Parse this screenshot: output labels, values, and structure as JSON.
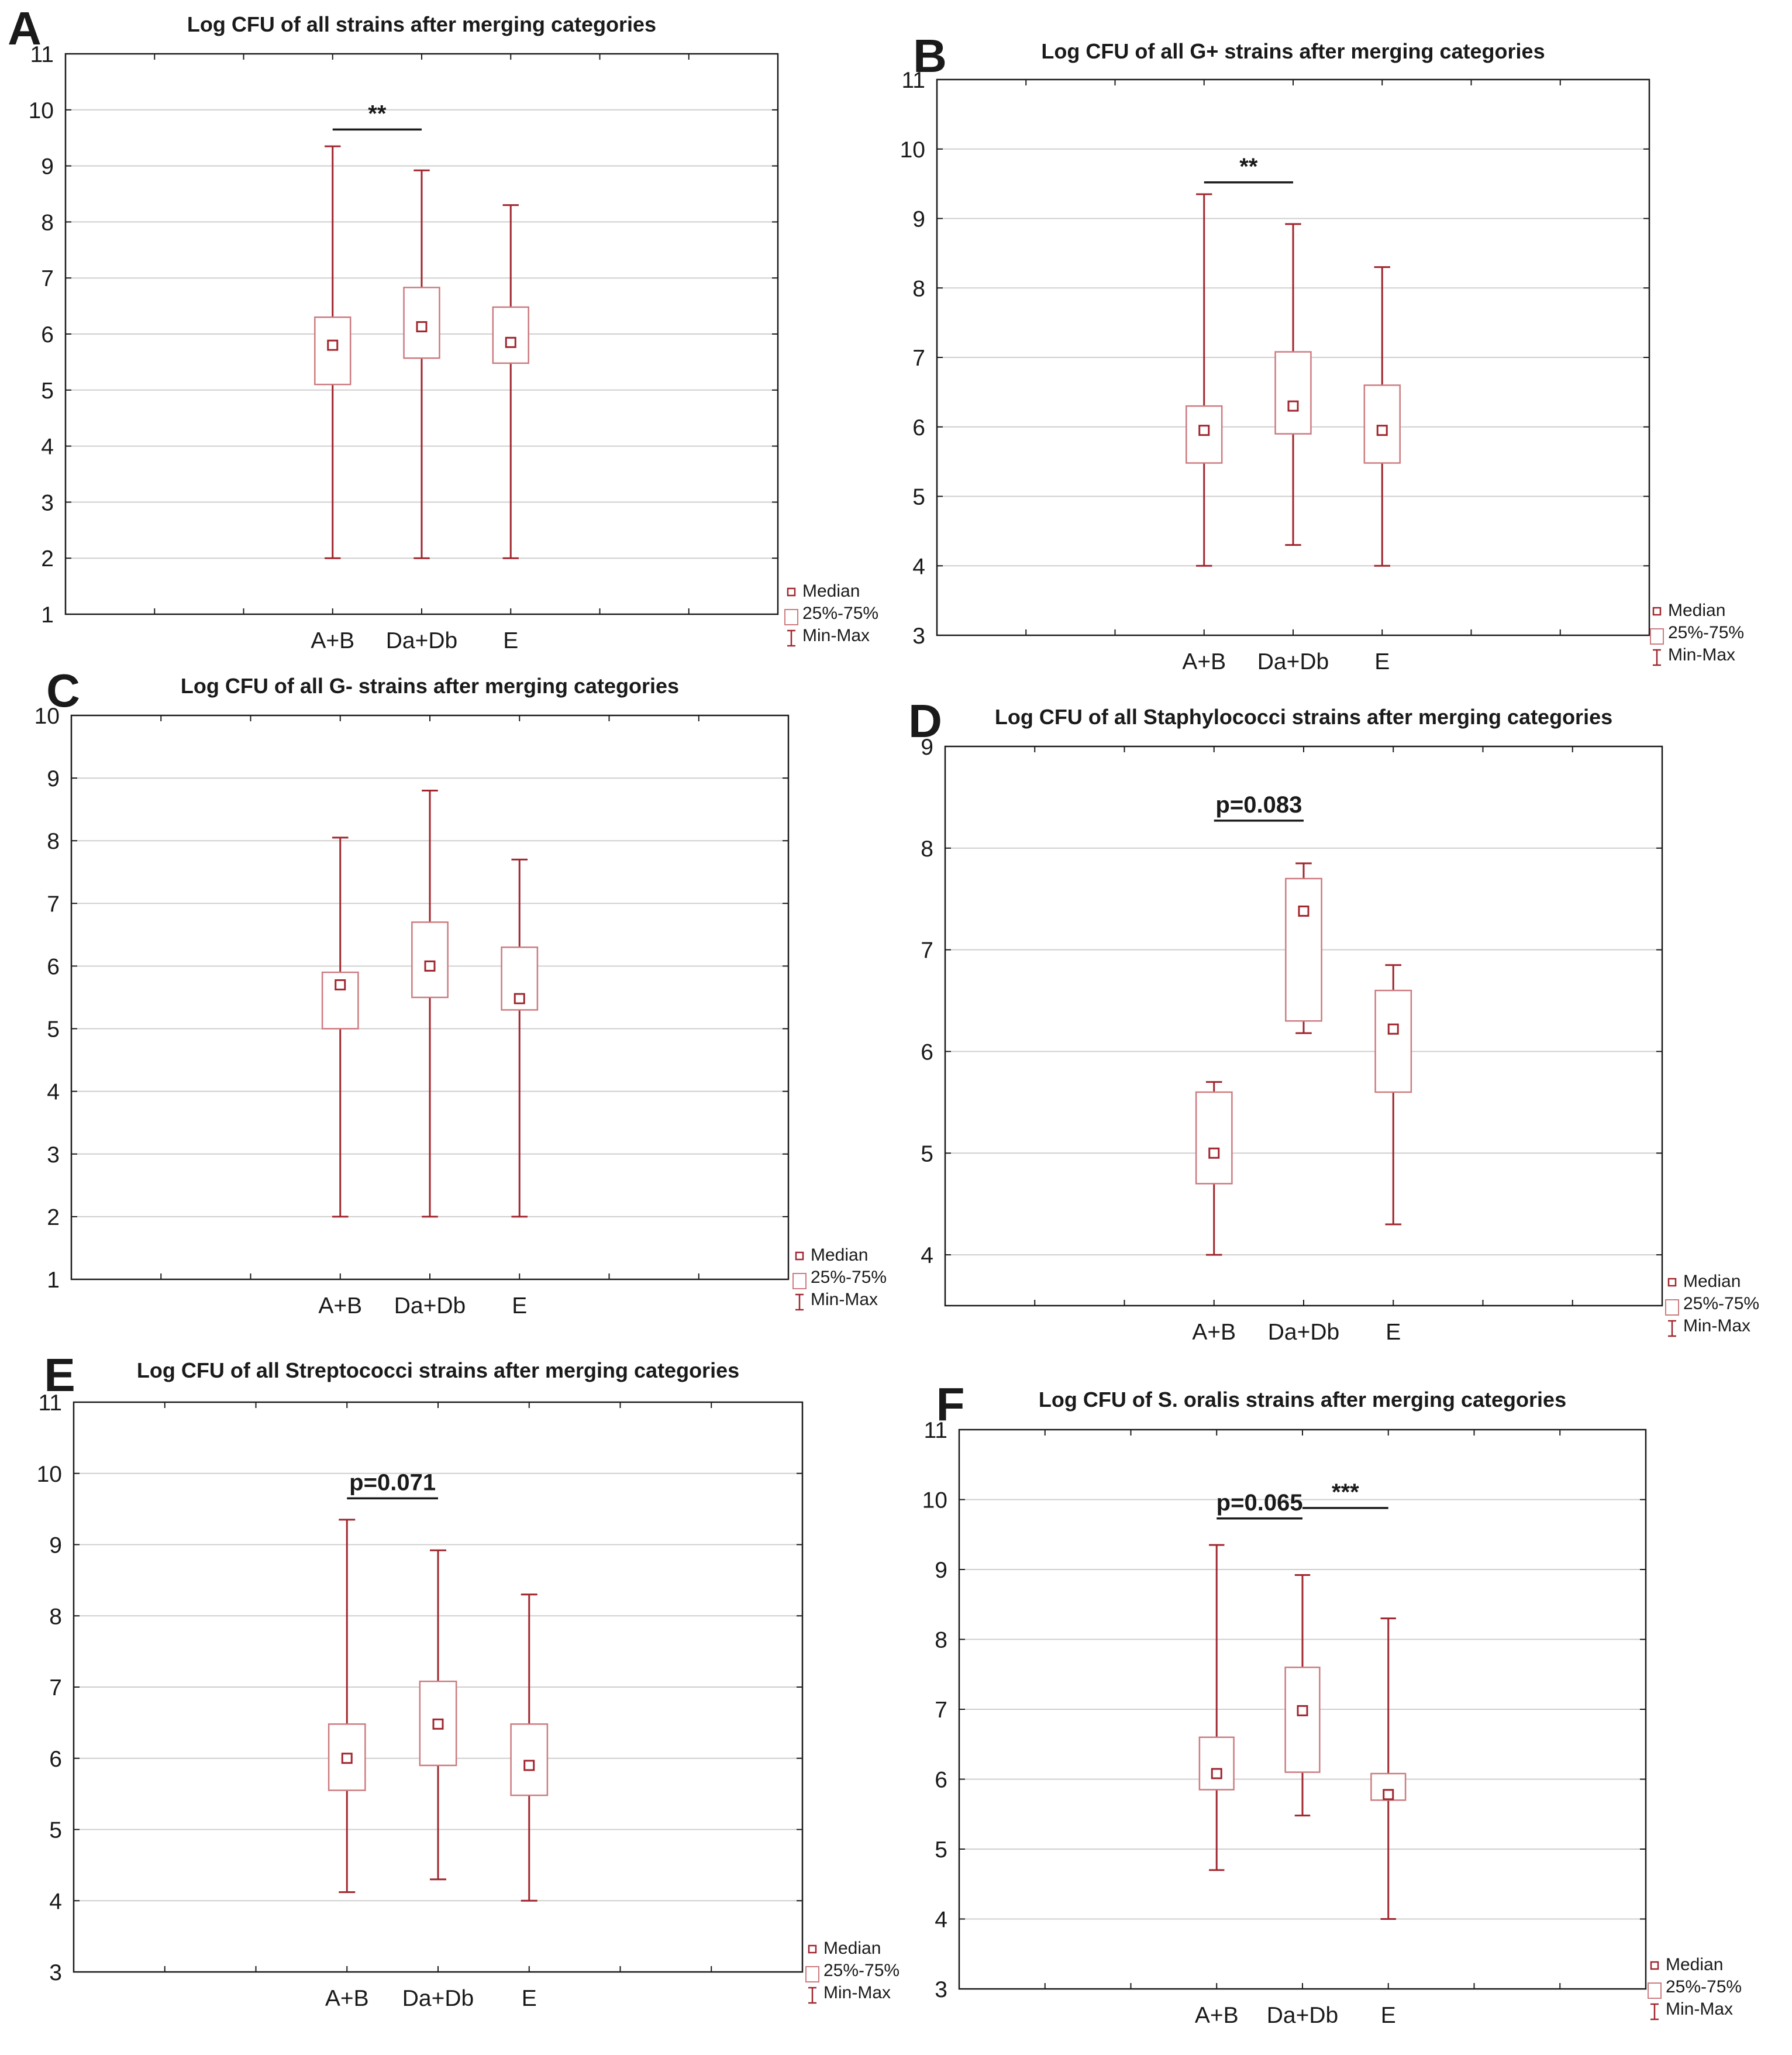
{
  "figure_colors": {
    "box": "#a0262e",
    "box_light": "#cc7b80",
    "grid": "#cfcfcf",
    "frame": "#1a1a1a"
  },
  "legend": {
    "median": "Median",
    "iqr": "25%-75%",
    "range": "Min-Max"
  },
  "chart_data": [
    {
      "panel": "A",
      "type": "boxplot",
      "title": "Log CFU of all strains after merging categories",
      "categories": [
        "A+B",
        "Da+Db",
        "E"
      ],
      "ylim": [
        1,
        11
      ],
      "yticks": [
        "1",
        "2",
        "3",
        "4",
        "5",
        "6",
        "7",
        "8",
        "9",
        "10",
        "11"
      ],
      "boxes": [
        {
          "min": 2.0,
          "q1": 5.1,
          "median": 5.8,
          "q3": 6.3,
          "max": 9.35
        },
        {
          "min": 2.0,
          "q1": 5.57,
          "median": 6.13,
          "q3": 6.83,
          "max": 8.92
        },
        {
          "min": 2.0,
          "q1": 5.48,
          "median": 5.85,
          "q3": 6.48,
          "max": 8.3
        }
      ],
      "annotations": [
        {
          "text": "**",
          "from": 0,
          "to": 1,
          "y": 9.65
        }
      ]
    },
    {
      "panel": "B",
      "type": "boxplot",
      "title": "Log CFU of all G+ strains after merging categories",
      "categories": [
        "A+B",
        "Da+Db",
        "E"
      ],
      "ylim": [
        3,
        11
      ],
      "yticks": [
        "3",
        "4",
        "5",
        "6",
        "7",
        "8",
        "9",
        "10",
        "11"
      ],
      "boxes": [
        {
          "min": 4.0,
          "q1": 5.48,
          "median": 5.95,
          "q3": 6.3,
          "max": 9.35
        },
        {
          "min": 4.3,
          "q1": 5.9,
          "median": 6.3,
          "q3": 7.08,
          "max": 8.92
        },
        {
          "min": 4.0,
          "q1": 5.48,
          "median": 5.95,
          "q3": 6.6,
          "max": 8.3
        }
      ],
      "annotations": [
        {
          "text": "**",
          "from": 0,
          "to": 1,
          "y": 9.52
        }
      ]
    },
    {
      "panel": "C",
      "type": "boxplot",
      "title": "Log CFU of all G- strains after merging categories",
      "categories": [
        "A+B",
        "Da+Db",
        "E"
      ],
      "ylim": [
        1,
        10
      ],
      "yticks": [
        "1",
        "2",
        "3",
        "4",
        "5",
        "6",
        "7",
        "8",
        "9",
        "10"
      ],
      "boxes": [
        {
          "min": 2.0,
          "q1": 5.0,
          "median": 5.7,
          "q3": 5.9,
          "max": 8.05
        },
        {
          "min": 2.0,
          "q1": 5.5,
          "median": 6.0,
          "q3": 6.7,
          "max": 8.8
        },
        {
          "min": 2.0,
          "q1": 5.3,
          "median": 5.48,
          "q3": 6.3,
          "max": 7.7
        }
      ],
      "annotations": []
    },
    {
      "panel": "D",
      "type": "boxplot",
      "title": "Log CFU of all Staphylococci strains after merging categories",
      "categories": [
        "A+B",
        "Da+Db",
        "E"
      ],
      "ylim": [
        3.5,
        9
      ],
      "yticks": [
        "4",
        "5",
        "6",
        "7",
        "8",
        "9"
      ],
      "boxes": [
        {
          "min": 4.0,
          "q1": 4.7,
          "median": 5.0,
          "q3": 5.6,
          "max": 5.7
        },
        {
          "min": 6.18,
          "q1": 6.3,
          "median": 7.38,
          "q3": 7.7,
          "max": 7.85
        },
        {
          "min": 4.3,
          "q1": 5.6,
          "median": 6.22,
          "q3": 6.6,
          "max": 6.85
        }
      ],
      "annotations": [
        {
          "text": "p=0.083",
          "from": 0,
          "to": 1,
          "y": 8.27
        }
      ]
    },
    {
      "panel": "E",
      "type": "boxplot",
      "title": "Log CFU of all Streptococci strains after merging categories",
      "categories": [
        "A+B",
        "Da+Db",
        "E"
      ],
      "ylim": [
        3,
        11
      ],
      "yticks": [
        "3",
        "4",
        "5",
        "6",
        "7",
        "8",
        "9",
        "10",
        "11"
      ],
      "boxes": [
        {
          "min": 4.12,
          "q1": 5.55,
          "median": 6.0,
          "q3": 6.48,
          "max": 9.35
        },
        {
          "min": 4.3,
          "q1": 5.9,
          "median": 6.48,
          "q3": 7.08,
          "max": 8.92
        },
        {
          "min": 4.0,
          "q1": 5.48,
          "median": 5.9,
          "q3": 6.48,
          "max": 8.3
        }
      ],
      "annotations": [
        {
          "text": "p=0.071",
          "from": 0,
          "to": 1,
          "y": 9.65
        }
      ]
    },
    {
      "panel": "F",
      "type": "boxplot",
      "title": "Log CFU of S. oralis strains after merging categories",
      "categories": [
        "A+B",
        "Da+Db",
        "E"
      ],
      "ylim": [
        3,
        11
      ],
      "yticks": [
        "3",
        "4",
        "5",
        "6",
        "7",
        "8",
        "9",
        "10",
        "11"
      ],
      "boxes": [
        {
          "min": 4.7,
          "q1": 5.85,
          "median": 6.08,
          "q3": 6.6,
          "max": 9.35
        },
        {
          "min": 5.48,
          "q1": 6.1,
          "median": 6.98,
          "q3": 7.6,
          "max": 8.92
        },
        {
          "min": 4.0,
          "q1": 5.7,
          "median": 5.78,
          "q3": 6.08,
          "max": 8.3
        }
      ],
      "annotations": [
        {
          "text": "p=0.065",
          "from": 0,
          "to": 1,
          "y": 9.73
        },
        {
          "text": "***",
          "from": 1,
          "to": 2,
          "y": 9.88
        }
      ]
    }
  ]
}
